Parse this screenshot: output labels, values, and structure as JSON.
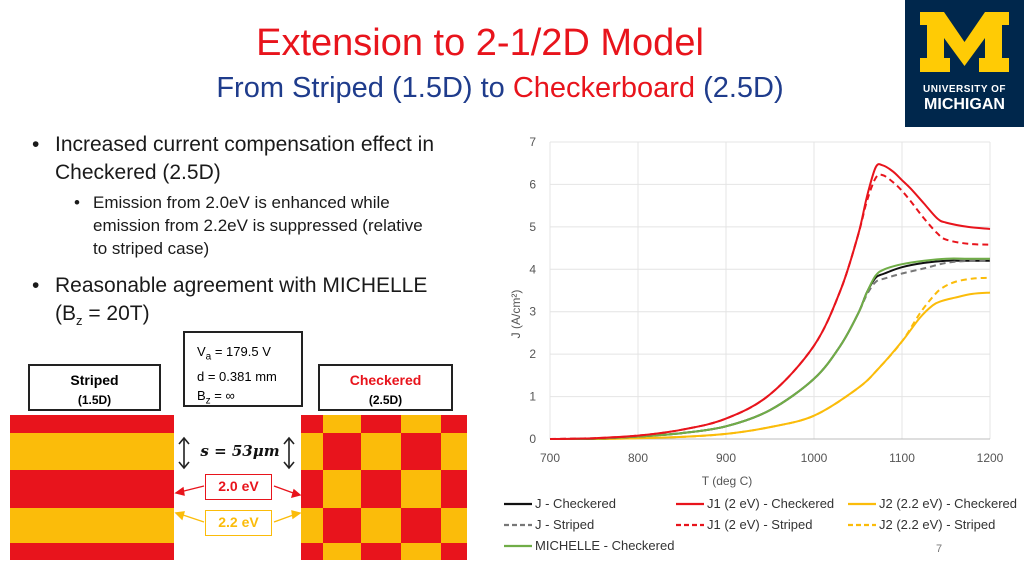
{
  "header": {
    "title": "Extension to 2-1/2D Model",
    "subtitle_part1": "From Striped (1.5D) to ",
    "subtitle_checkerboard": "Checkerboard",
    "subtitle_part2": " (2.5D)"
  },
  "logo": {
    "line1": "UNIVERSITY OF",
    "line2": "MICHIGAN"
  },
  "bullets": {
    "b1_line1": "Increased current compensation effect in",
    "b1_line2": "Checkered (2.5D)",
    "sub1_line1": "Emission from 2.0eV is enhanced while",
    "sub1_line2": "emission from 2.2eV is suppressed (relative",
    "sub1_line3": "to striped case)",
    "b2_line1": "Reasonable agreement with MICHELLE",
    "b2_line2_pre": "(B",
    "b2_line2_sub": "z",
    "b2_line2_post": " = 20T)"
  },
  "params": {
    "va_pre": "V",
    "va_sub": "a",
    "va_post": " = 179.5 V",
    "d": "d = 0.381 mm",
    "bz_pre": "B",
    "bz_sub": "z",
    "bz_post": " = ∞"
  },
  "striped": {
    "name": "Striped",
    "dim": "(1.5D)"
  },
  "checkered": {
    "name": "Checkered",
    "dim": "(2.5D)"
  },
  "spacing_label": "s = 53μm",
  "ev_labels": {
    "ev20": "2.0 eV",
    "ev22": "2.2 eV"
  },
  "colors": {
    "red": "#e8141c",
    "yellow": "#fbbc0a",
    "navy": "#00274c",
    "maize": "#ffcb05"
  },
  "chart_data": {
    "type": "line",
    "title": "",
    "xlabel": "T (deg C)",
    "ylabel": "J (A/cm²)",
    "xlim": [
      700,
      1200
    ],
    "ylim": [
      0,
      7
    ],
    "xticks": [
      700,
      800,
      900,
      1000,
      1100,
      1200
    ],
    "yticks": [
      0,
      1,
      2,
      3,
      4,
      5,
      6,
      7
    ],
    "grid": true,
    "series": [
      {
        "name": "J - Checkered",
        "color": "#111111",
        "dash": "solid",
        "x": [
          700,
          750,
          800,
          850,
          900,
          950,
          1000,
          1030,
          1050,
          1060,
          1070,
          1080,
          1100,
          1125,
          1150,
          1175,
          1200
        ],
        "y": [
          0.0,
          0.01,
          0.06,
          0.14,
          0.3,
          0.68,
          1.42,
          2.2,
          2.95,
          3.45,
          3.8,
          3.9,
          4.05,
          4.15,
          4.2,
          4.2,
          4.2
        ]
      },
      {
        "name": "J - Striped",
        "color": "#777777",
        "dash": "dashed",
        "x": [
          700,
          750,
          800,
          850,
          900,
          950,
          1000,
          1030,
          1050,
          1060,
          1070,
          1080,
          1100,
          1125,
          1150,
          1175,
          1200
        ],
        "y": [
          0.0,
          0.01,
          0.06,
          0.14,
          0.3,
          0.68,
          1.42,
          2.2,
          2.95,
          3.4,
          3.7,
          3.78,
          3.9,
          4.02,
          4.15,
          4.2,
          4.2
        ]
      },
      {
        "name": "J1 (2 eV) - Checkered",
        "color": "#e8141c",
        "dash": "solid",
        "x": [
          700,
          750,
          800,
          850,
          900,
          950,
          1000,
          1030,
          1050,
          1060,
          1070,
          1078,
          1090,
          1100,
          1110,
          1125,
          1140,
          1150,
          1175,
          1200
        ],
        "y": [
          0.0,
          0.02,
          0.08,
          0.22,
          0.48,
          1.05,
          2.2,
          3.5,
          4.8,
          5.7,
          6.4,
          6.45,
          6.3,
          6.1,
          5.9,
          5.55,
          5.2,
          5.1,
          5.0,
          4.95
        ]
      },
      {
        "name": "J1 (2 eV) - Striped",
        "color": "#e8141c",
        "dash": "dashed",
        "x": [
          700,
          750,
          800,
          850,
          900,
          950,
          1000,
          1030,
          1050,
          1060,
          1070,
          1078,
          1090,
          1100,
          1110,
          1125,
          1140,
          1150,
          1175,
          1200
        ],
        "y": [
          0.0,
          0.02,
          0.08,
          0.22,
          0.48,
          1.05,
          2.2,
          3.5,
          4.8,
          5.6,
          6.15,
          6.22,
          6.05,
          5.85,
          5.6,
          5.2,
          4.85,
          4.7,
          4.6,
          4.58
        ]
      },
      {
        "name": "J2 (2.2 eV) - Checkered",
        "color": "#fbbc0a",
        "dash": "solid",
        "x": [
          700,
          750,
          800,
          850,
          900,
          950,
          1000,
          1050,
          1075,
          1100,
          1120,
          1135,
          1145,
          1160,
          1180,
          1200
        ],
        "y": [
          0.0,
          0.0,
          0.02,
          0.05,
          0.12,
          0.28,
          0.55,
          1.2,
          1.7,
          2.3,
          2.85,
          3.15,
          3.25,
          3.33,
          3.42,
          3.45
        ]
      },
      {
        "name": "J2 (2.2 eV) - Striped",
        "color": "#fbbc0a",
        "dash": "dashed",
        "x": [
          700,
          750,
          800,
          850,
          900,
          950,
          1000,
          1050,
          1075,
          1100,
          1120,
          1135,
          1145,
          1160,
          1180,
          1200
        ],
        "y": [
          0.0,
          0.0,
          0.02,
          0.05,
          0.12,
          0.28,
          0.55,
          1.2,
          1.7,
          2.3,
          2.95,
          3.35,
          3.55,
          3.7,
          3.78,
          3.8
        ]
      },
      {
        "name": "MICHELLE - Checkered",
        "color": "#70ad47",
        "dash": "solid",
        "x": [
          700,
          750,
          800,
          850,
          900,
          950,
          1000,
          1030,
          1050,
          1060,
          1070,
          1080,
          1100,
          1125,
          1150,
          1175,
          1200
        ],
        "y": [
          0.0,
          0.01,
          0.06,
          0.14,
          0.3,
          0.68,
          1.42,
          2.2,
          2.95,
          3.45,
          3.85,
          4.0,
          4.12,
          4.2,
          4.25,
          4.25,
          4.25
        ]
      }
    ]
  },
  "page_number": "7"
}
